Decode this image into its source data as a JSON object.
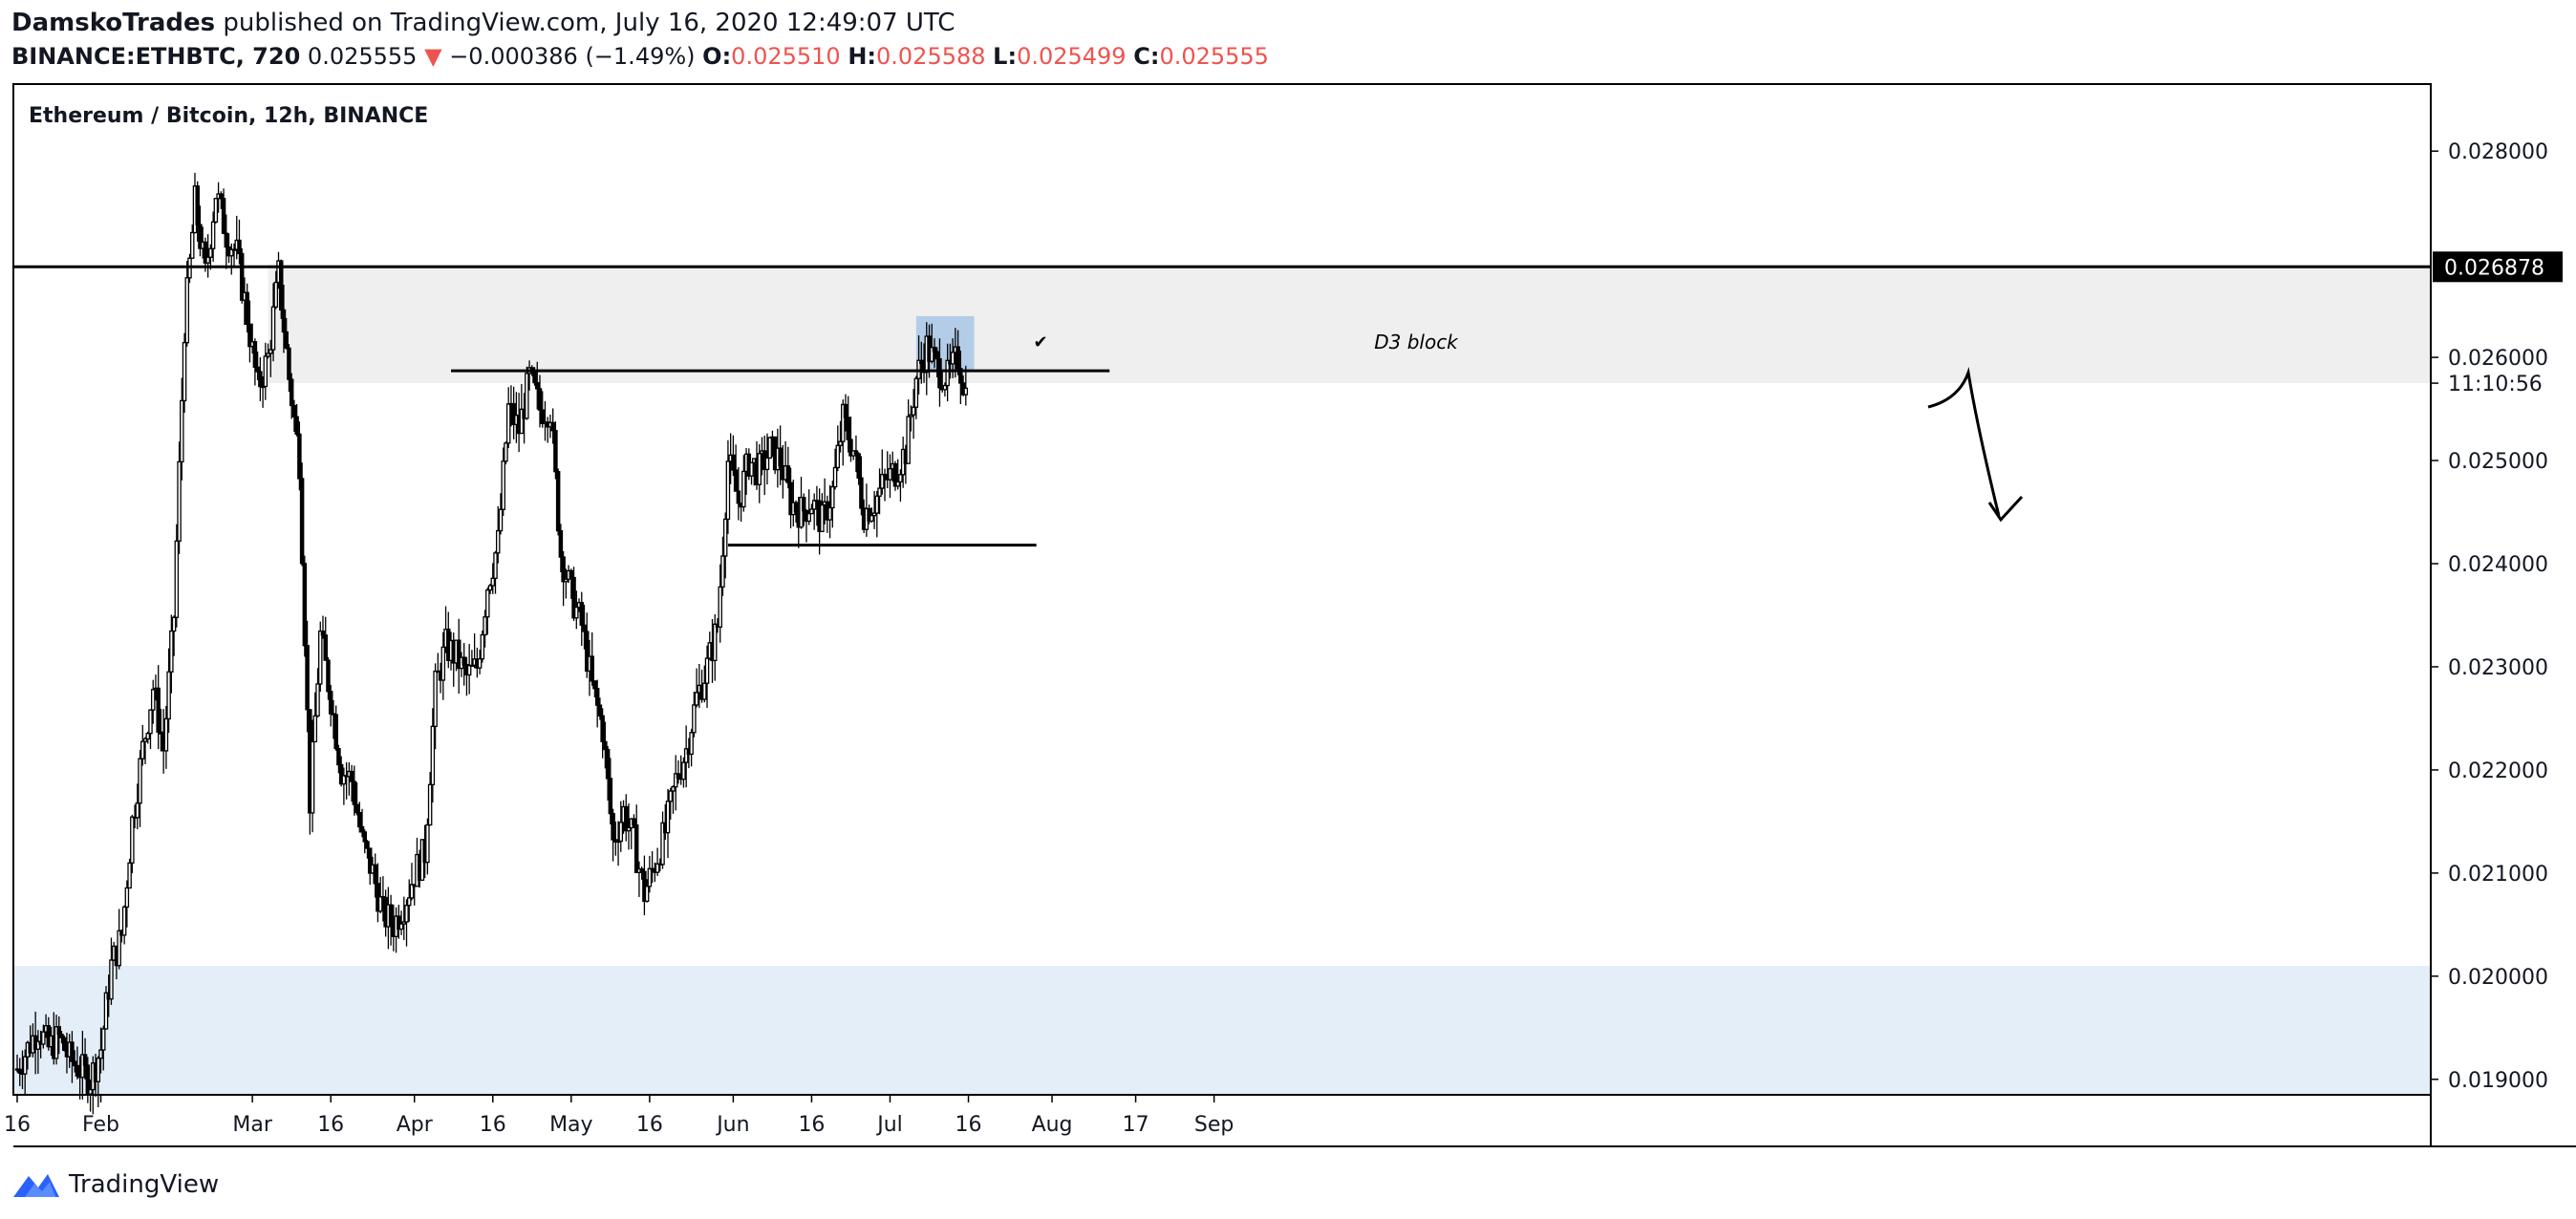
{
  "header": {
    "author": "DamskoTrades",
    "published_text": "published on TradingView.com, July 16, 2020 12:49:07 UTC",
    "symbol": "BINANCE:ETHBTC, 720",
    "last": "0.025555",
    "change": "−0.000386 (−1.49%)",
    "o_label": "O:",
    "o_value": "0.025510",
    "h_label": "H:",
    "h_value": "0.025588",
    "l_label": "L:",
    "l_value": "0.025499",
    "c_label": "C:",
    "c_value": "0.025555"
  },
  "footer": {
    "logo_text": "TradingView"
  },
  "colors": {
    "down": "#ef5350",
    "candle": "#000000",
    "zone_grey": "#efefef",
    "zone_blue": "#e3eef9",
    "highlight": "#b3cde8"
  },
  "chart_data": {
    "type": "candlestick",
    "title": "Ethereum / Bitcoin, 12h, BINANCE",
    "ylim": [
      0.01885,
      0.02865
    ],
    "y_ticks": [
      "0.028000",
      "0.026000",
      "0.025000",
      "0.024000",
      "0.023000",
      "0.022000",
      "0.021000",
      "0.020000",
      "0.019000"
    ],
    "x_ticks": [
      "16",
      "Feb",
      "Mar",
      "16",
      "Apr",
      "16",
      "May",
      "16",
      "Jun",
      "16",
      "Jul",
      "16",
      "Aug",
      "17",
      "Sep"
    ],
    "price_label": "0.026878",
    "countdown_label": "11:10:56",
    "annotation_text": "D3 block",
    "checkmark": "✔",
    "levels": [
      {
        "name": "resistance",
        "value": 0.026878
      },
      {
        "name": "range-top",
        "value": 0.02587
      },
      {
        "name": "range-bottom",
        "value": 0.02418
      }
    ],
    "zones": [
      {
        "name": "d3-block",
        "from": 0.02575,
        "to": 0.0269
      },
      {
        "name": "demand",
        "from": 0.01885,
        "to": 0.0201
      }
    ],
    "close_path": [
      [
        "Jan 16",
        0.0191
      ],
      [
        "Jan 18",
        0.0193
      ],
      [
        "Jan 20",
        0.0195
      ],
      [
        "Jan 22",
        0.0193
      ],
      [
        "Jan 24",
        0.0194
      ],
      [
        "Jan 26",
        0.0192
      ],
      [
        "Jan 28",
        0.0191
      ],
      [
        "Jan 30",
        0.019
      ],
      [
        "Feb 1",
        0.0193
      ],
      [
        "Feb 3",
        0.0201
      ],
      [
        "Feb 5",
        0.0204
      ],
      [
        "Feb 7",
        0.0215
      ],
      [
        "Feb 9",
        0.0222
      ],
      [
        "Feb 11",
        0.0228
      ],
      [
        "Feb 13",
        0.0222
      ],
      [
        "Feb 15",
        0.0235
      ],
      [
        "Feb 17",
        0.0263
      ],
      [
        "Feb 19",
        0.0275
      ],
      [
        "Feb 21",
        0.0268
      ],
      [
        "Feb 23",
        0.0276
      ],
      [
        "Feb 25",
        0.0272
      ],
      [
        "Feb 27",
        0.027
      ],
      [
        "Feb 29",
        0.0264
      ],
      [
        "Mar 2",
        0.0257
      ],
      [
        "Mar 4",
        0.026
      ],
      [
        "Mar 6",
        0.0268
      ],
      [
        "Mar 8",
        0.0258
      ],
      [
        "Mar 10",
        0.025
      ],
      [
        "Mar 12",
        0.0217
      ],
      [
        "Mar 14",
        0.0233
      ],
      [
        "Mar 16",
        0.0227
      ],
      [
        "Mar 18",
        0.022
      ],
      [
        "Mar 20",
        0.0219
      ],
      [
        "Mar 22",
        0.0213
      ],
      [
        "Mar 24",
        0.021
      ],
      [
        "Mar 26",
        0.0206
      ],
      [
        "Mar 28",
        0.0205
      ],
      [
        "Mar 30",
        0.0207
      ],
      [
        "Apr 1",
        0.021
      ],
      [
        "Apr 3",
        0.0212
      ],
      [
        "Apr 5",
        0.0228
      ],
      [
        "Apr 7",
        0.0232
      ],
      [
        "Apr 9",
        0.0231
      ],
      [
        "Apr 11",
        0.0229
      ],
      [
        "Apr 13",
        0.023
      ],
      [
        "Apr 15",
        0.0238
      ],
      [
        "Apr 17",
        0.0242
      ],
      [
        "Apr 19",
        0.0255
      ],
      [
        "Apr 21",
        0.0253
      ],
      [
        "Apr 23",
        0.0258
      ],
      [
        "Apr 25",
        0.0255
      ],
      [
        "Apr 27",
        0.0255
      ],
      [
        "Apr 29",
        0.0241
      ],
      [
        "May 1",
        0.0237
      ],
      [
        "May 3",
        0.0234
      ],
      [
        "May 5",
        0.0228
      ],
      [
        "May 7",
        0.0224
      ],
      [
        "May 9",
        0.0213
      ],
      [
        "May 11",
        0.0216
      ],
      [
        "May 13",
        0.0213
      ],
      [
        "May 15",
        0.0208
      ],
      [
        "May 17",
        0.0211
      ],
      [
        "May 19",
        0.0214
      ],
      [
        "May 21",
        0.0219
      ],
      [
        "May 23",
        0.0222
      ],
      [
        "May 25",
        0.0227
      ],
      [
        "May 27",
        0.023
      ],
      [
        "May 29",
        0.0234
      ],
      [
        "May 31",
        0.025
      ],
      [
        "Jun 2",
        0.0246
      ],
      [
        "Jun 4",
        0.025
      ],
      [
        "Jun 6",
        0.0249
      ],
      [
        "Jun 8",
        0.0251
      ],
      [
        "Jun 10",
        0.025
      ],
      [
        "Jun 12",
        0.0246
      ],
      [
        "Jun 14",
        0.0245
      ],
      [
        "Jun 16",
        0.0246
      ],
      [
        "Jun 18",
        0.0244
      ],
      [
        "Jun 20",
        0.0247
      ],
      [
        "Jun 22",
        0.0254
      ],
      [
        "Jun 24",
        0.0251
      ],
      [
        "Jun 26",
        0.0245
      ],
      [
        "Jun 28",
        0.0246
      ],
      [
        "Jun 30",
        0.0248
      ],
      [
        "Jul 2",
        0.0249
      ],
      [
        "Jul 4",
        0.0251
      ],
      [
        "Jul 6",
        0.0258
      ],
      [
        "Jul 8",
        0.0261
      ],
      [
        "Jul 10",
        0.0259
      ],
      [
        "Jul 12",
        0.0258
      ],
      [
        "Jul 14",
        0.026
      ],
      [
        "Jul 16",
        0.02555
      ]
    ]
  }
}
